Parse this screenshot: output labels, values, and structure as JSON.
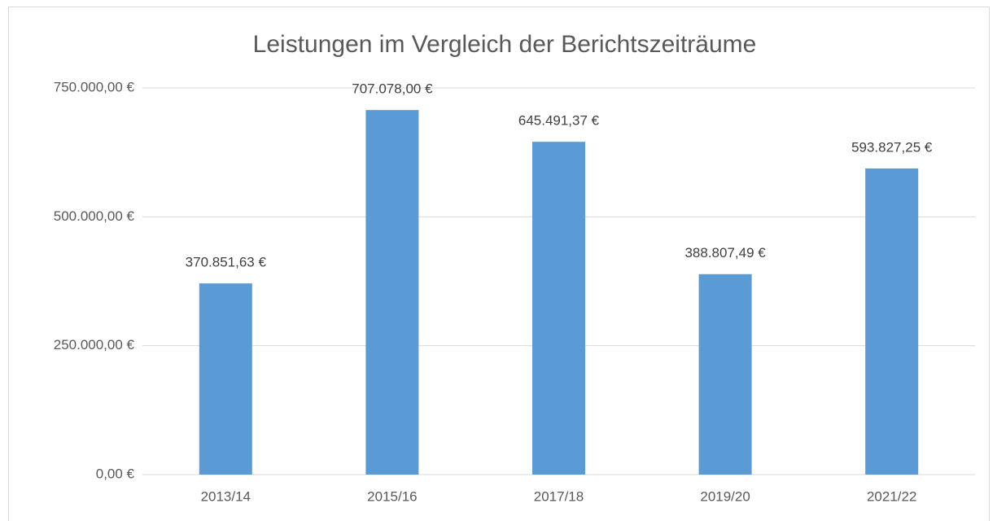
{
  "chart_data": {
    "type": "bar",
    "title": "Leistungen im Vergleich der Berichtszeiträume",
    "categories": [
      "2013/14",
      "2015/16",
      "2017/18",
      "2019/20",
      "2021/22"
    ],
    "values": [
      370851.63,
      707078.0,
      645491.37,
      388807.49,
      593827.25
    ],
    "value_labels": [
      "370.851,63 €",
      "707.078,00 €",
      "645.491,37 €",
      "388.807,49 €",
      "593.827,25 €"
    ],
    "color": "#5b9bd5",
    "ylim": [
      0,
      750000
    ],
    "yticks": [
      {
        "value": 0,
        "label": "0,00 €"
      },
      {
        "value": 250000,
        "label": "250.000,00 €"
      },
      {
        "value": 500000,
        "label": "500.000,00 €"
      },
      {
        "value": 750000,
        "label": "750.000,00 €"
      }
    ],
    "grid": true
  }
}
